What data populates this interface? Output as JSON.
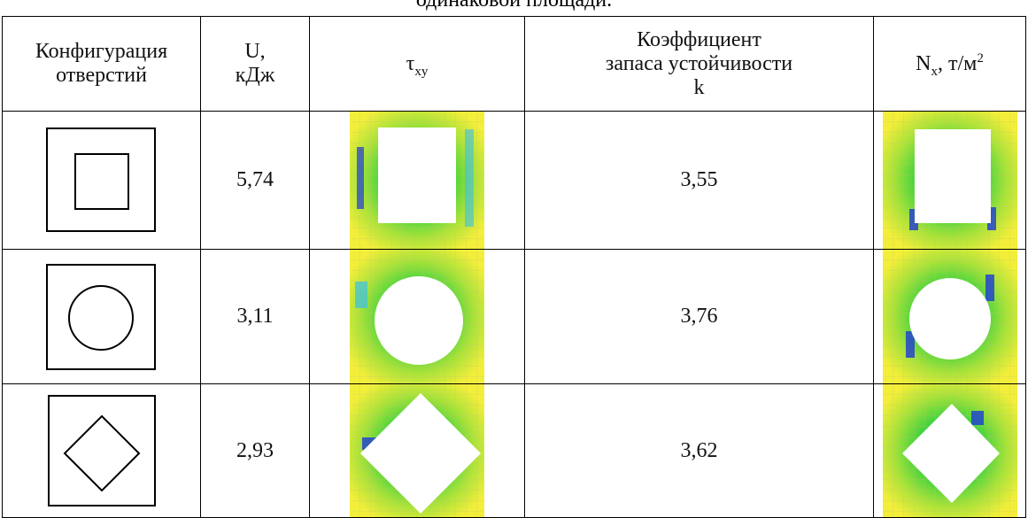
{
  "caption": "одинаковой площади.",
  "table": {
    "header": [
      {
        "lines": [
          "Конфигурация",
          "отверстий"
        ]
      },
      {
        "lines": [
          "U,",
          "кДж"
        ]
      },
      {
        "symbol": "τ",
        "sub": "xy"
      },
      {
        "lines": [
          "Коэффициент",
          "запаса устойчивости",
          "k"
        ]
      },
      {
        "symbol": "N",
        "sub": "x",
        "unit": ", т/м",
        "sup": "2"
      }
    ],
    "rows": [
      {
        "U": "5,74",
        "k": "3,55"
      },
      {
        "U": "3,11",
        "k": "3,76"
      },
      {
        "U": "2,93",
        "k": "3,62"
      }
    ]
  }
}
